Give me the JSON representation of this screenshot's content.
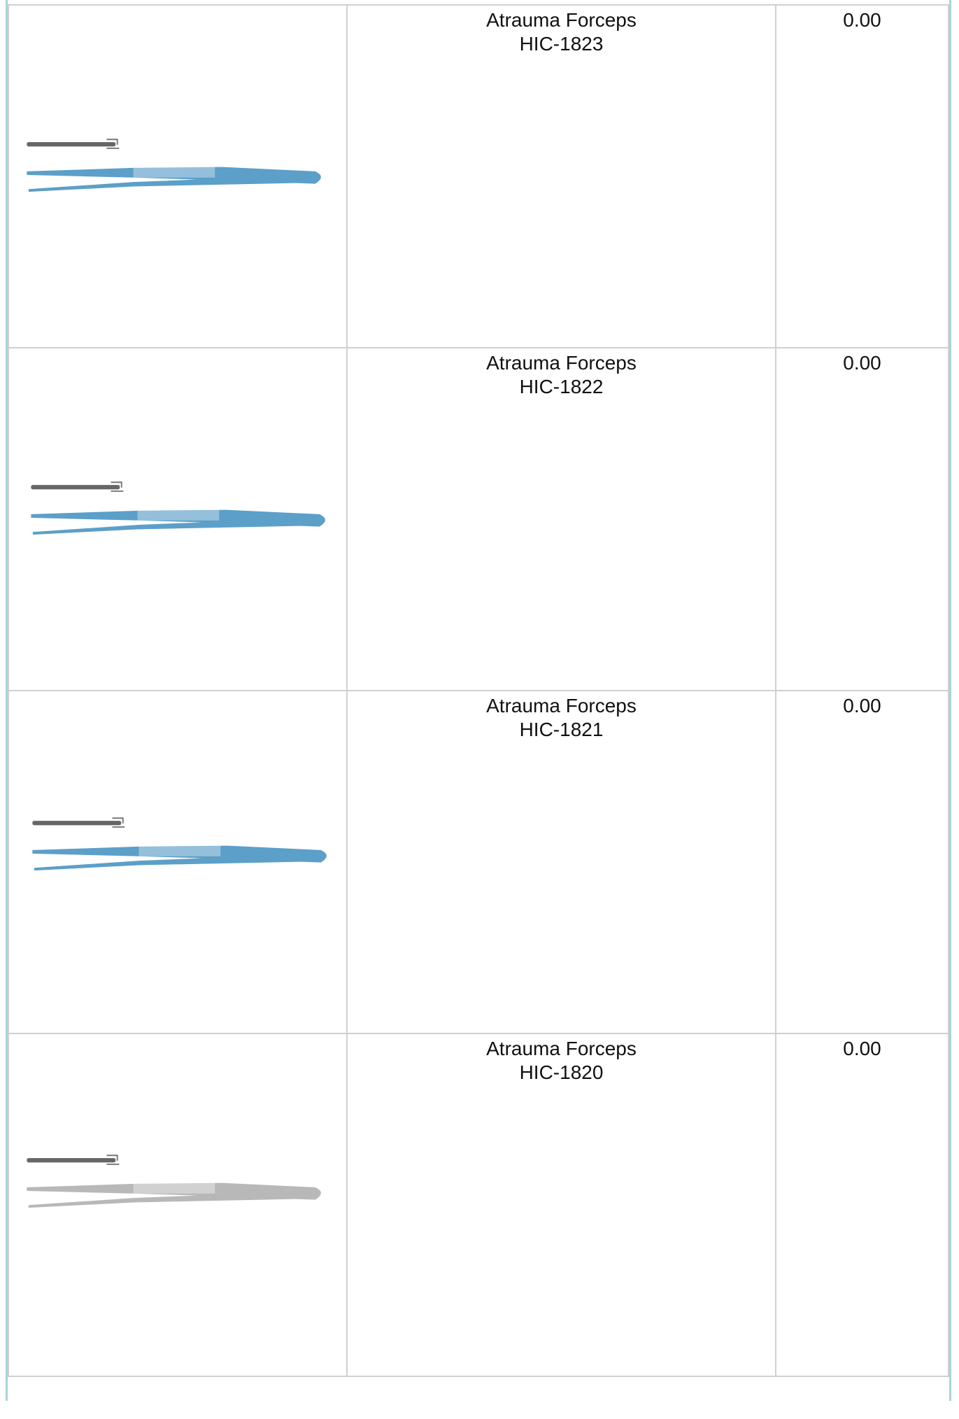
{
  "products": [
    {
      "name": "Atrauma Forceps",
      "code": "HIC-1823",
      "price": "0.00"
    },
    {
      "name": "Atrauma Forceps",
      "code": "HIC-1822",
      "price": "0.00"
    },
    {
      "name": "Atrauma Forceps",
      "code": "HIC-1821",
      "price": "0.00"
    },
    {
      "name": "Atrauma Forceps",
      "code": "HIC-1820",
      "price": "0.00"
    }
  ]
}
